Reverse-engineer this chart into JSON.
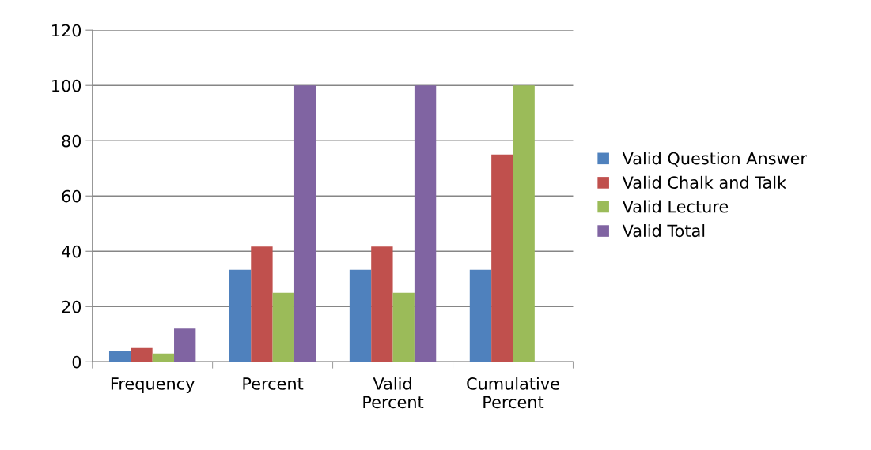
{
  "chart_data": {
    "type": "bar",
    "categories": [
      "Frequency",
      "Percent",
      "Valid\nPercent",
      "Cumulative\nPercent"
    ],
    "series": [
      {
        "name": "Valid Question Answer",
        "color": "#4f81bd",
        "values": [
          4,
          33.3,
          33.3,
          33.3
        ]
      },
      {
        "name": "Valid Chalk and Talk",
        "color": "#c0504d",
        "values": [
          5,
          41.7,
          41.7,
          75
        ]
      },
      {
        "name": "Valid Lecture",
        "color": "#9bbb59",
        "values": [
          3,
          25,
          25,
          100
        ]
      },
      {
        "name": "Valid Total",
        "color": "#8064a2",
        "values": [
          12,
          100,
          100,
          null
        ]
      }
    ],
    "ylim": [
      0,
      120
    ],
    "yticks": [
      0,
      20,
      40,
      60,
      80,
      100,
      120
    ],
    "grid": "y",
    "legend": "right"
  }
}
